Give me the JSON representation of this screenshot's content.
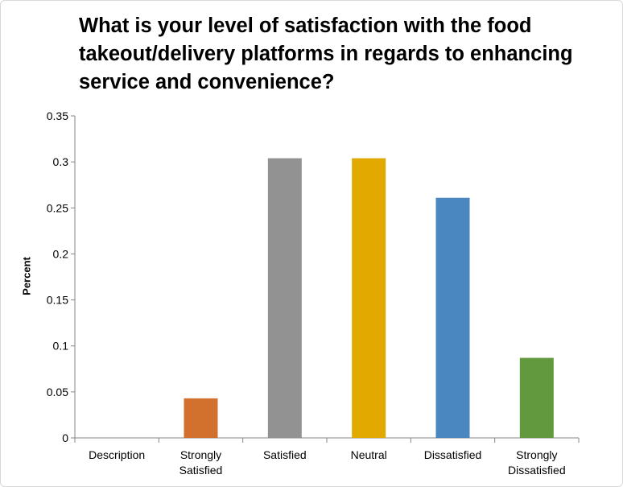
{
  "chart_data": {
    "type": "bar",
    "title": "What is your level of satisfaction with the food takeout/delivery platforms in regards to enhancing service and convenience?",
    "xlabel": "",
    "ylabel": "Percent",
    "categories": [
      "Description",
      "Strongly\nSatisfied",
      "Satisfied",
      "Neutral",
      "Dissatisfied",
      "Strongly\nDissatisfied"
    ],
    "values": [
      0,
      0.043,
      0.304,
      0.304,
      0.261,
      0.087
    ],
    "colors": [
      "#ffffff",
      "#d2702d",
      "#929292",
      "#e2a900",
      "#4a86c0",
      "#63993e"
    ],
    "ylim": [
      0,
      0.35
    ],
    "yticks": [
      "0",
      "0.05",
      "0.1",
      "0.15",
      "0.2",
      "0.25",
      "0.3",
      "0.35"
    ],
    "grid": false,
    "legend": "none"
  }
}
